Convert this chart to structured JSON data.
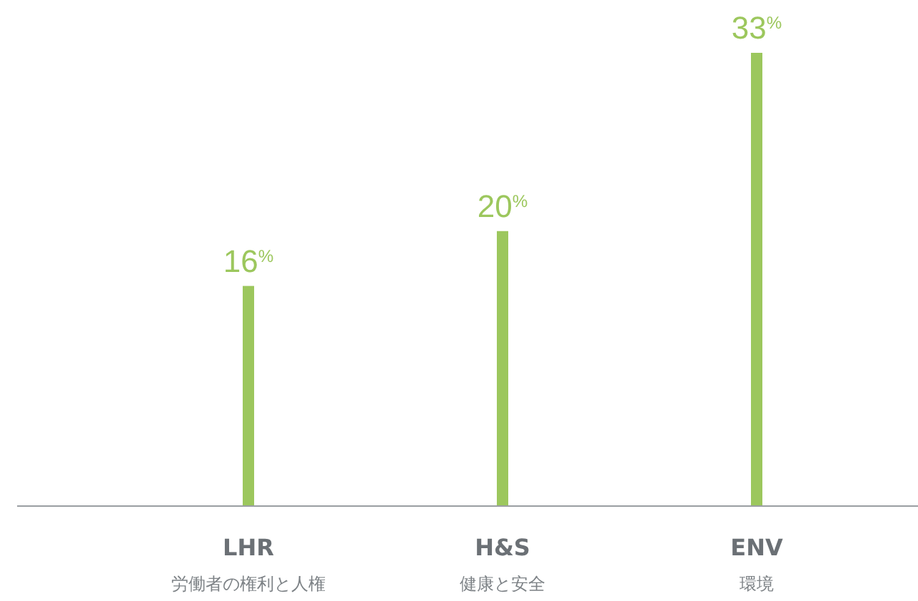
{
  "chart_data": {
    "type": "bar",
    "categories": [
      "LHR\n労働者の権利と人権",
      "H&S\n健康と安全",
      "ENV\n環境"
    ],
    "values": [
      16,
      20,
      33
    ],
    "value_labels": [
      "16$^{%}$",
      "20$^{%}$",
      "33$^{%}$"
    ],
    "color": "#9cc75d"
  }
}
